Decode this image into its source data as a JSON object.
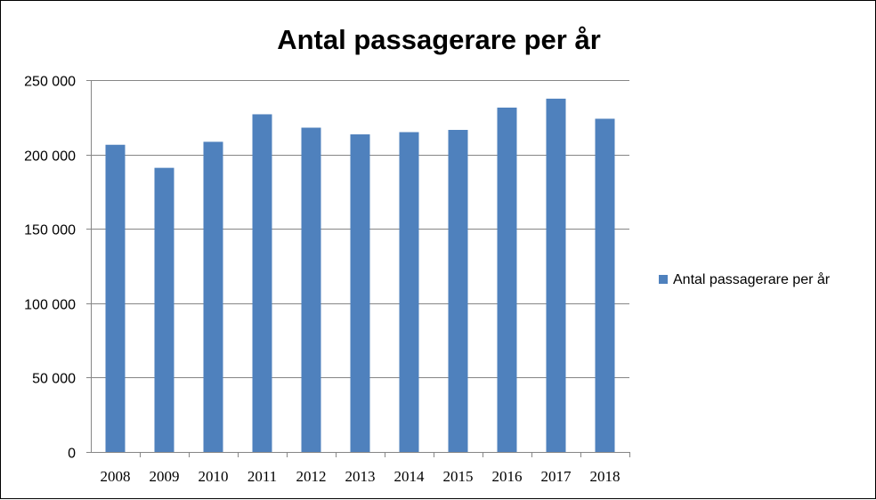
{
  "chart_data": {
    "type": "bar",
    "title": "Antal passagerare per år",
    "xlabel": "",
    "ylabel": "",
    "categories": [
      "2008",
      "2009",
      "2010",
      "2011",
      "2012",
      "2013",
      "2014",
      "2015",
      "2016",
      "2017",
      "2018"
    ],
    "series": [
      {
        "name": "Antal passagerare per år",
        "color": "#4F81BD",
        "values": [
          206500,
          191000,
          208500,
          227000,
          218000,
          213500,
          215000,
          216500,
          231500,
          237500,
          224000
        ]
      }
    ],
    "ylim": [
      0,
      250000
    ],
    "yticks": [
      0,
      50000,
      100000,
      150000,
      200000,
      250000
    ],
    "ytick_labels": [
      "0",
      "50 000",
      "100 000",
      "150 000",
      "200 000",
      "250 000"
    ],
    "grid": true,
    "legend_position": "right"
  }
}
